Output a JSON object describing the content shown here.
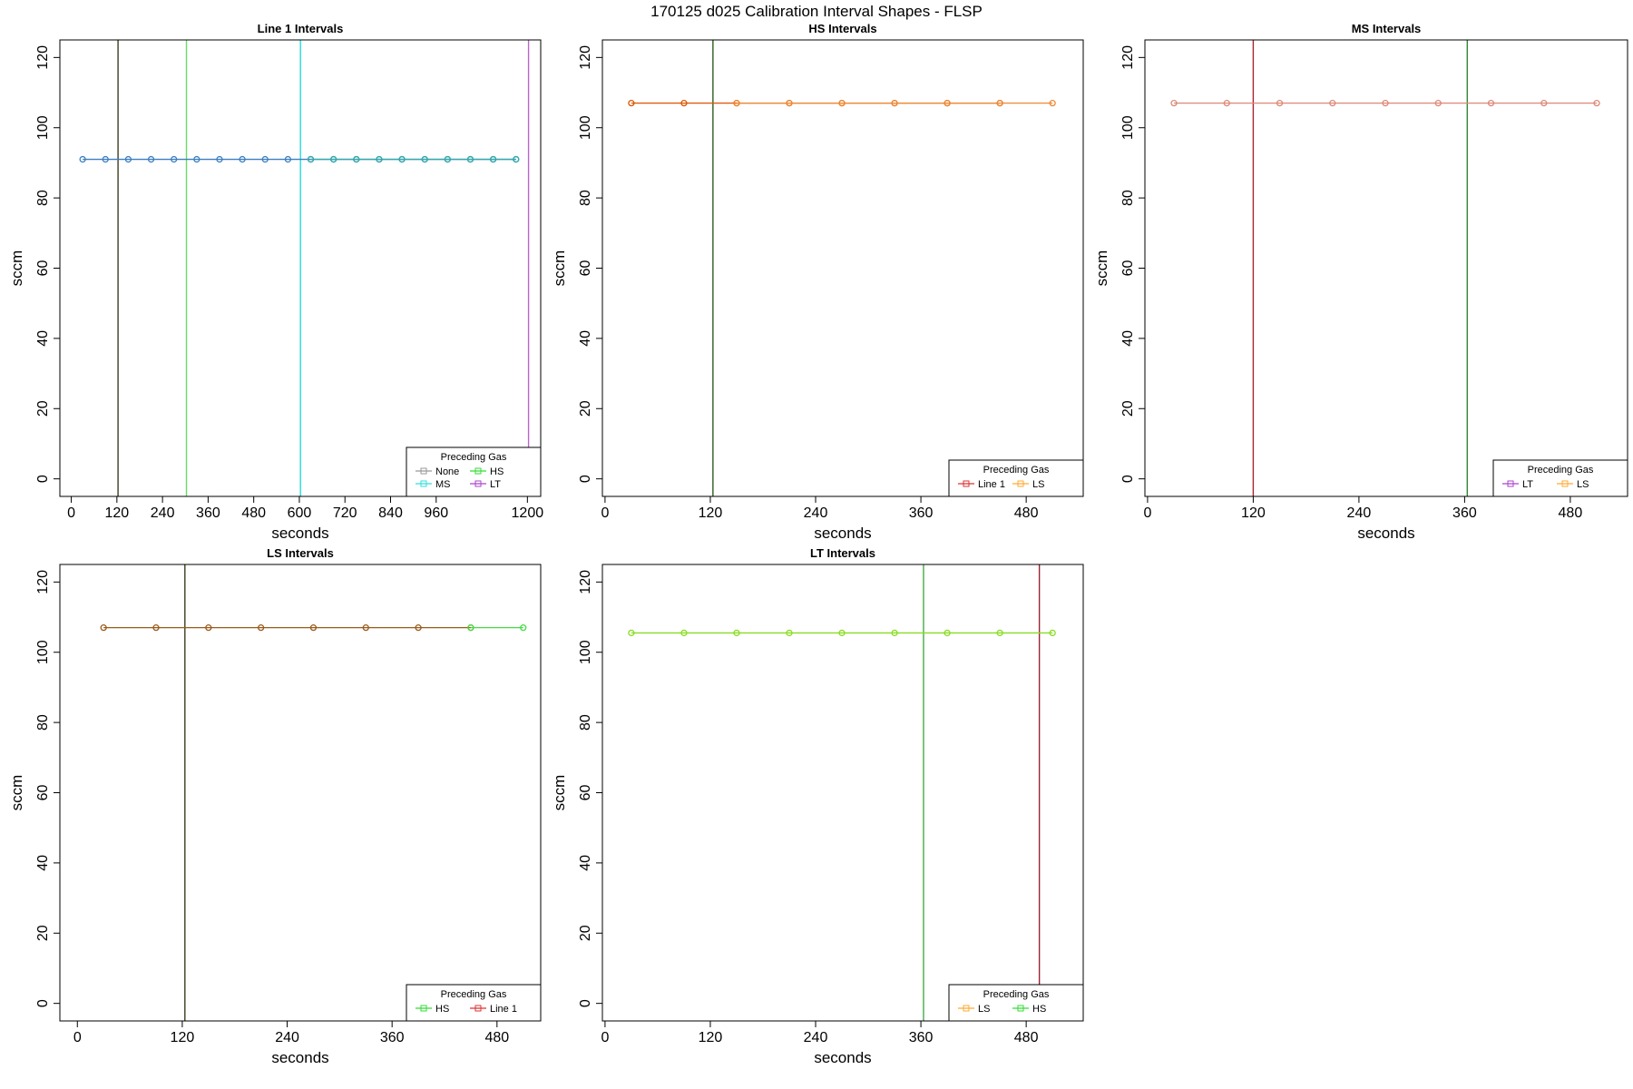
{
  "figure_title": "170125   d025   Calibration Interval Shapes - FLSP",
  "chart_data": [
    {
      "type": "line",
      "title": "Line 1 Intervals",
      "xlabel": "seconds",
      "ylabel": "sccm",
      "xlim": [
        -30,
        1235
      ],
      "ylim": [
        -5,
        125
      ],
      "xticks": [
        0,
        120,
        240,
        360,
        480,
        600,
        720,
        840,
        960,
        1200
      ],
      "xtick_labels": [
        "0",
        "120",
        "240",
        "360",
        "480",
        "600",
        "720",
        "840",
        "960",
        "1200"
      ],
      "yticks": [
        0,
        20,
        40,
        60,
        80,
        100,
        120
      ],
      "ytick_labels": [
        "0",
        "20",
        "40",
        "60",
        "80",
        "100",
        "120"
      ],
      "grid": false,
      "legend": {
        "title": "Preceding Gas",
        "position": "bottom-right",
        "columns": 2,
        "entries": [
          {
            "label": "None",
            "color": "#999999"
          },
          {
            "label": "HS",
            "color": "#33dd33"
          },
          {
            "label": "MS",
            "color": "#33dddd"
          },
          {
            "label": "LT",
            "color": "#aa44cc"
          }
        ]
      },
      "vlines": [
        {
          "x": 123,
          "color": "#3d3d1f"
        },
        {
          "x": 303,
          "color": "#66dd66"
        },
        {
          "x": 603,
          "color": "#22dddd"
        },
        {
          "x": 1203,
          "color": "#bb66cc"
        }
      ],
      "series": [
        {
          "color": "#3a7fbf",
          "x": [
            30,
            90,
            150,
            210,
            270,
            330,
            390,
            450,
            510,
            570,
            630,
            690,
            750,
            810,
            870,
            930,
            990,
            1050,
            1110,
            1170
          ],
          "y": [
            91,
            91,
            91,
            91,
            91,
            91,
            91,
            91,
            91,
            91,
            91,
            91,
            91,
            91,
            91,
            91,
            91,
            91,
            91,
            91
          ]
        },
        {
          "color": "#33aaaa",
          "x": [
            630,
            690,
            750,
            810,
            870,
            930,
            990,
            1050,
            1110,
            1170
          ],
          "y": [
            91,
            91,
            91,
            91,
            91,
            91,
            91,
            91,
            91,
            91
          ]
        }
      ]
    },
    {
      "type": "line",
      "title": "HS Intervals",
      "xlabel": "seconds",
      "ylabel": "sccm",
      "xlim": [
        -3,
        545
      ],
      "ylim": [
        -5,
        125
      ],
      "xticks": [
        0,
        120,
        240,
        360,
        480
      ],
      "xtick_labels": [
        "0",
        "120",
        "240",
        "360",
        "480"
      ],
      "yticks": [
        0,
        20,
        40,
        60,
        80,
        100,
        120
      ],
      "ytick_labels": [
        "0",
        "20",
        "40",
        "60",
        "80",
        "100",
        "120"
      ],
      "grid": false,
      "legend": {
        "title": "Preceding Gas",
        "position": "bottom-right",
        "columns": 2,
        "entries": [
          {
            "label": "Line 1",
            "color": "#dd3333"
          },
          {
            "label": "LS",
            "color": "#ffaa33"
          }
        ]
      },
      "vlines": [
        {
          "x": 123,
          "color": "#2e5e1e"
        }
      ],
      "series": [
        {
          "color": "#dd5500",
          "x": [
            30,
            90,
            150,
            210,
            270,
            330,
            390,
            450
          ],
          "y": [
            107,
            107,
            107,
            107,
            107,
            107,
            107,
            107
          ]
        },
        {
          "color": "#ee8833",
          "x": [
            150,
            210,
            270,
            330,
            390,
            450,
            510
          ],
          "y": [
            107,
            107,
            107,
            107,
            107,
            107,
            107
          ]
        }
      ]
    },
    {
      "type": "line",
      "title": "MS Intervals",
      "xlabel": "seconds",
      "ylabel": "sccm",
      "xlim": [
        -3,
        545
      ],
      "ylim": [
        -5,
        125
      ],
      "xticks": [
        0,
        120,
        240,
        360,
        480
      ],
      "xtick_labels": [
        "0",
        "120",
        "240",
        "360",
        "480"
      ],
      "yticks": [
        0,
        20,
        40,
        60,
        80,
        100,
        120
      ],
      "ytick_labels": [
        "0",
        "20",
        "40",
        "60",
        "80",
        "100",
        "120"
      ],
      "grid": false,
      "legend": {
        "title": "Preceding Gas",
        "position": "bottom-right",
        "columns": 2,
        "entries": [
          {
            "label": "LT",
            "color": "#aa44cc"
          },
          {
            "label": "LS",
            "color": "#ffaa33"
          }
        ]
      },
      "vlines": [
        {
          "x": 120,
          "color": "#aa2233"
        },
        {
          "x": 363,
          "color": "#338833"
        }
      ],
      "series": [
        {
          "color": "#dd8877",
          "x": [
            30,
            90,
            150,
            210,
            270,
            330,
            390,
            450,
            510
          ],
          "y": [
            107,
            107,
            107,
            107,
            107,
            107,
            107,
            107,
            107
          ]
        }
      ]
    },
    {
      "type": "line",
      "title": "LS Intervals",
      "xlabel": "seconds",
      "ylabel": "sccm",
      "xlim": [
        -20,
        530
      ],
      "ylim": [
        -5,
        125
      ],
      "xticks": [
        0,
        120,
        240,
        360,
        480
      ],
      "xtick_labels": [
        "0",
        "120",
        "240",
        "360",
        "480"
      ],
      "yticks": [
        0,
        20,
        40,
        60,
        80,
        100,
        120
      ],
      "ytick_labels": [
        "0",
        "20",
        "40",
        "60",
        "80",
        "100",
        "120"
      ],
      "grid": false,
      "legend": {
        "title": "Preceding Gas",
        "position": "bottom-right",
        "columns": 2,
        "entries": [
          {
            "label": "HS",
            "color": "#33dd33"
          },
          {
            "label": "Line 1",
            "color": "#dd3333"
          }
        ]
      },
      "vlines": [
        {
          "x": 123,
          "color": "#3d3d1f"
        }
      ],
      "series": [
        {
          "color": "#9a5a1a",
          "x": [
            30,
            90,
            150,
            210,
            270,
            330,
            390,
            450
          ],
          "y": [
            107,
            107,
            107,
            107,
            107,
            107,
            107,
            107
          ]
        },
        {
          "color": "#44dd44",
          "x": [
            450,
            510
          ],
          "y": [
            107,
            107
          ]
        }
      ]
    },
    {
      "type": "line",
      "title": "LT Intervals",
      "xlabel": "seconds",
      "ylabel": "sccm",
      "xlim": [
        -3,
        545
      ],
      "ylim": [
        -5,
        125
      ],
      "xticks": [
        0,
        120,
        240,
        360,
        480
      ],
      "xtick_labels": [
        "0",
        "120",
        "240",
        "360",
        "480"
      ],
      "yticks": [
        0,
        20,
        40,
        60,
        80,
        100,
        120
      ],
      "ytick_labels": [
        "0",
        "20",
        "40",
        "60",
        "80",
        "100",
        "120"
      ],
      "grid": false,
      "legend": {
        "title": "Preceding Gas",
        "position": "bottom-right",
        "columns": 2,
        "entries": [
          {
            "label": "LS",
            "color": "#ffaa33"
          },
          {
            "label": "HS",
            "color": "#33dd33"
          }
        ]
      },
      "vlines": [
        {
          "x": 363,
          "color": "#44aa44"
        },
        {
          "x": 495,
          "color": "#992233"
        }
      ],
      "series": [
        {
          "color": "#88dd22",
          "x": [
            30,
            90,
            150,
            210,
            270,
            330,
            390,
            450,
            510
          ],
          "y": [
            105.5,
            105.5,
            105.5,
            105.5,
            105.5,
            105.5,
            105.5,
            105.5,
            105.5
          ]
        }
      ]
    }
  ]
}
